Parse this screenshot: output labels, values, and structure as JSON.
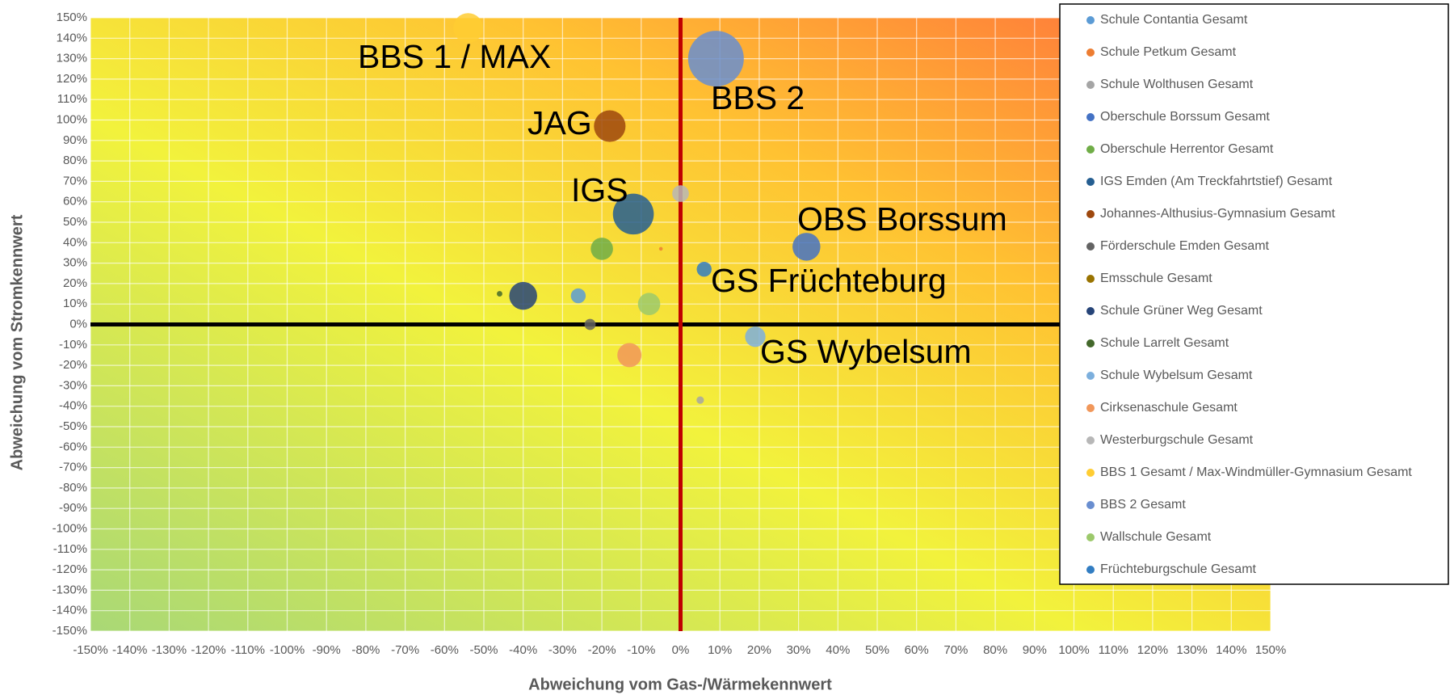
{
  "chart_data": {
    "type": "bubble",
    "xlabel": "Abweichung vom Gas-/Wärmekennwert",
    "ylabel": "Abweichung vom Stromkennwert",
    "xlim": [
      -150,
      150
    ],
    "ylim": [
      -150,
      150
    ],
    "grid": true,
    "legend": "upper right",
    "xticks": [
      {
        "value": -150,
        "label": "-150%"
      },
      {
        "value": -140,
        "label": "-140%"
      },
      {
        "value": -130,
        "label": "-130%"
      },
      {
        "value": -120,
        "label": "-120%"
      },
      {
        "value": -110,
        "label": "-110%"
      },
      {
        "value": -100,
        "label": "-100%"
      },
      {
        "value": -90,
        "label": "-90%"
      },
      {
        "value": -80,
        "label": "-80%"
      },
      {
        "value": -70,
        "label": "-70%"
      },
      {
        "value": -60,
        "label": "-60%"
      },
      {
        "value": -50,
        "label": "-50%"
      },
      {
        "value": -40,
        "label": "-40%"
      },
      {
        "value": -30,
        "label": "-30%"
      },
      {
        "value": -20,
        "label": "-20%"
      },
      {
        "value": -10,
        "label": "-10%"
      },
      {
        "value": 0,
        "label": "0%"
      },
      {
        "value": 10,
        "label": "10%"
      },
      {
        "value": 20,
        "label": "20%"
      },
      {
        "value": 30,
        "label": "30%"
      },
      {
        "value": 40,
        "label": "40%"
      },
      {
        "value": 50,
        "label": "50%"
      },
      {
        "value": 60,
        "label": "60%"
      },
      {
        "value": 70,
        "label": "70%"
      },
      {
        "value": 80,
        "label": "80%"
      },
      {
        "value": 90,
        "label": "90%"
      },
      {
        "value": 100,
        "label": "100%"
      },
      {
        "value": 110,
        "label": "110%"
      },
      {
        "value": 120,
        "label": "120%"
      },
      {
        "value": 130,
        "label": "130%"
      },
      {
        "value": 140,
        "label": "140%"
      },
      {
        "value": 150,
        "label": "150%"
      }
    ],
    "yticks": [
      {
        "value": -150,
        "label": "-150%"
      },
      {
        "value": -140,
        "label": "-140%"
      },
      {
        "value": -130,
        "label": "-130%"
      },
      {
        "value": -120,
        "label": "-120%"
      },
      {
        "value": -110,
        "label": "-110%"
      },
      {
        "value": -100,
        "label": "-100%"
      },
      {
        "value": -90,
        "label": "-90%"
      },
      {
        "value": -80,
        "label": "-80%"
      },
      {
        "value": -70,
        "label": "-70%"
      },
      {
        "value": -60,
        "label": "-60%"
      },
      {
        "value": -50,
        "label": "-50%"
      },
      {
        "value": -40,
        "label": "-40%"
      },
      {
        "value": -30,
        "label": "-30%"
      },
      {
        "value": -20,
        "label": "-20%"
      },
      {
        "value": -10,
        "label": "-10%"
      },
      {
        "value": 0,
        "label": "0%"
      },
      {
        "value": 10,
        "label": "10%"
      },
      {
        "value": 20,
        "label": "20%"
      },
      {
        "value": 30,
        "label": "30%"
      },
      {
        "value": 40,
        "label": "40%"
      },
      {
        "value": 50,
        "label": "50%"
      },
      {
        "value": 60,
        "label": "60%"
      },
      {
        "value": 70,
        "label": "70%"
      },
      {
        "value": 80,
        "label": "80%"
      },
      {
        "value": 90,
        "label": "90%"
      },
      {
        "value": 100,
        "label": "100%"
      },
      {
        "value": 110,
        "label": "110%"
      },
      {
        "value": 120,
        "label": "120%"
      },
      {
        "value": 130,
        "label": "130%"
      },
      {
        "value": 140,
        "label": "140%"
      },
      {
        "value": 150,
        "label": "150%"
      }
    ],
    "series": [
      {
        "name": "Schule Contantia Gesamt",
        "color": "#5b9bd5",
        "x": -26,
        "y": 14,
        "size": 64
      },
      {
        "name": "Schule Petkum  Gesamt",
        "color": "#ed7d31",
        "x": -5,
        "y": 37,
        "size": 4
      },
      {
        "name": "Schule Wolthusen Gesamt",
        "color": "#a5a5a5",
        "x": 5,
        "y": -37,
        "size": 16
      },
      {
        "name": "Oberschule Borssum Gesamt",
        "color": "#4472c4",
        "x": 32,
        "y": 38,
        "size": 225
      },
      {
        "name": "Oberschule Herrentor Gesamt",
        "color": "#70ad47",
        "x": -20,
        "y": 37,
        "size": 144
      },
      {
        "name": "IGS Emden (Am Treckfahrtstief) Gesamt",
        "color": "#255e91",
        "x": -12,
        "y": 54,
        "size": 484
      },
      {
        "name": "Johannes-Althusius-Gymnasium Gesamt",
        "color": "#9e480e",
        "x": -18,
        "y": 97,
        "size": 289
      },
      {
        "name": "Förderschule Emden Gesamt",
        "color": "#636363",
        "x": -23,
        "y": 0,
        "size": 36
      },
      {
        "name": "Emsschule Gesamt",
        "color": "#997300",
        "x": null,
        "y": null,
        "size": null
      },
      {
        "name": "Schule Grüner Weg Gesamt",
        "color": "#264478",
        "x": -40,
        "y": 14,
        "size": 225
      },
      {
        "name": "Schule Larrelt Gesamt",
        "color": "#43682b",
        "x": -46,
        "y": 15,
        "size": 9
      },
      {
        "name": "Schule Wybelsum Gesamt",
        "color": "#7cafdd",
        "x": 19,
        "y": -6,
        "size": 121
      },
      {
        "name": "Cirksenaschule Gesamt",
        "color": "#f1975a",
        "x": -13,
        "y": -15,
        "size": 169
      },
      {
        "name": "Westerburgschule Gesamt",
        "color": "#b7b7b7",
        "x": 0,
        "y": 64,
        "size": 81
      },
      {
        "name": "BBS 1 Gesamt / Max-Windmüller-Gymnasium Gesamt",
        "color": "#ffcd33",
        "x": -54,
        "y": 145,
        "size": 256
      },
      {
        "name": "BBS 2 Gesamt",
        "color": "#698ed0",
        "x": 9,
        "y": 130,
        "size": 900
      },
      {
        "name": "Wallschule Gesamt",
        "color": "#9cc96b",
        "x": -8,
        "y": 10,
        "size": 144
      },
      {
        "name": "Früchteburgschule Gesamt",
        "color": "#327dc2",
        "x": 6,
        "y": 27,
        "size": 64
      }
    ],
    "annotations": [
      "BBS 1 / MAX",
      "BBS 2",
      "JAG",
      "IGS",
      "OBS Borssum",
      "GS Früchteburg",
      "GS Wybelsum"
    ]
  }
}
